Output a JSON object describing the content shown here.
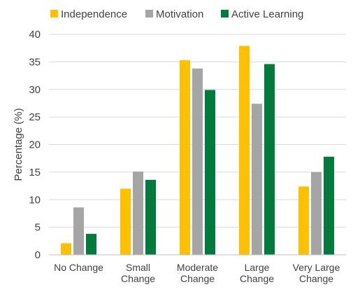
{
  "chart_data": {
    "type": "bar",
    "title": "",
    "xlabel": "",
    "ylabel": "Percentage (%)",
    "ylim": [
      0,
      40
    ],
    "yticks": [
      0,
      5,
      10,
      15,
      20,
      25,
      30,
      35,
      40
    ],
    "grid": true,
    "legend_position": "top",
    "categories": [
      [
        "No Change"
      ],
      [
        "Small",
        "Change"
      ],
      [
        "Moderate",
        "Change"
      ],
      [
        "Large",
        "Change"
      ],
      [
        "Very Large",
        "Change"
      ]
    ],
    "series": [
      {
        "name": "Independence",
        "color": "#FFC000",
        "values": [
          2.1,
          12.0,
          35.3,
          37.9,
          12.4
        ]
      },
      {
        "name": "Motivation",
        "color": "#A5A5A5",
        "values": [
          8.6,
          15.1,
          33.8,
          27.4,
          15.0
        ]
      },
      {
        "name": "Active Learning",
        "color": "#007A3D",
        "values": [
          3.8,
          13.6,
          29.9,
          34.6,
          17.8
        ]
      }
    ]
  }
}
